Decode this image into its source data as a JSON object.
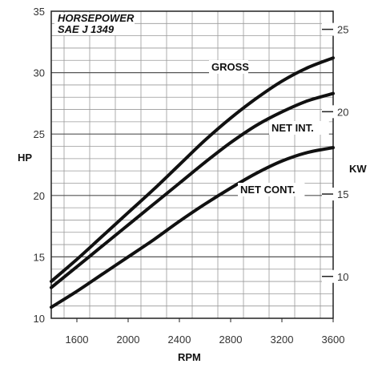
{
  "chart_data": {
    "type": "line",
    "title": "HORSEPOWER",
    "subtitle": "SAE J 1349",
    "xlabel": "RPM",
    "ylabel": "HP",
    "y2label": "KW",
    "xlim": [
      1400,
      3600
    ],
    "ylim": [
      10,
      35
    ],
    "y2lim": [
      7.457,
      26.1
    ],
    "xticks": [
      "1600",
      "2000",
      "2400",
      "2800",
      "3200",
      "3600"
    ],
    "yticks": [
      "10",
      "15",
      "20",
      "25",
      "30",
      "35"
    ],
    "y2ticks": [
      "10",
      "15",
      "20",
      "25"
    ],
    "grid": true,
    "series": [
      {
        "name": "GROSS",
        "x": [
          1400,
          1600,
          1800,
          2000,
          2200,
          2400,
          2600,
          2800,
          3000,
          3200,
          3400,
          3600
        ],
        "y": [
          13.0,
          14.8,
          16.7,
          18.6,
          20.5,
          22.5,
          24.5,
          26.3,
          27.9,
          29.3,
          30.4,
          31.2
        ]
      },
      {
        "name": "NET INT.",
        "x": [
          1400,
          1600,
          1800,
          2000,
          2200,
          2400,
          2600,
          2800,
          3000,
          3200,
          3400,
          3600
        ],
        "y": [
          12.5,
          14.2,
          15.9,
          17.6,
          19.3,
          21.0,
          22.7,
          24.3,
          25.7,
          26.8,
          27.7,
          28.3
        ]
      },
      {
        "name": "NET CONT.",
        "x": [
          1400,
          1600,
          1800,
          2000,
          2200,
          2400,
          2600,
          2800,
          3000,
          3200,
          3400,
          3600
        ],
        "y": [
          10.9,
          12.2,
          13.6,
          15.0,
          16.4,
          17.9,
          19.3,
          20.6,
          21.8,
          22.8,
          23.5,
          23.9
        ]
      }
    ]
  }
}
